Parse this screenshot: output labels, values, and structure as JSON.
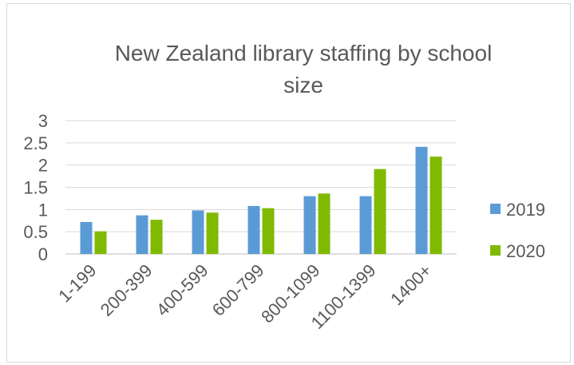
{
  "chart_data": {
    "type": "bar",
    "title_lines": [
      "New Zealand library staffing by school",
      "size"
    ],
    "xlabel": "",
    "ylabel": "",
    "categories": [
      "1-199",
      "200-399",
      "400-599",
      "600-799",
      "800-1099",
      "1100-1399",
      "1400+"
    ],
    "series": [
      {
        "name": "2019",
        "color": "#5b9bd5",
        "values": [
          0.72,
          0.87,
          0.98,
          1.08,
          1.3,
          1.3,
          2.41
        ]
      },
      {
        "name": "2020",
        "color": "#7fba00",
        "values": [
          0.51,
          0.77,
          0.93,
          1.03,
          1.36,
          1.91,
          2.19
        ]
      }
    ],
    "yticks": [
      "0",
      "0.5",
      "1",
      "1.5",
      "2",
      "2.5",
      "3"
    ],
    "ylim": [
      0,
      3
    ],
    "grid": true,
    "legend_position": "right"
  }
}
